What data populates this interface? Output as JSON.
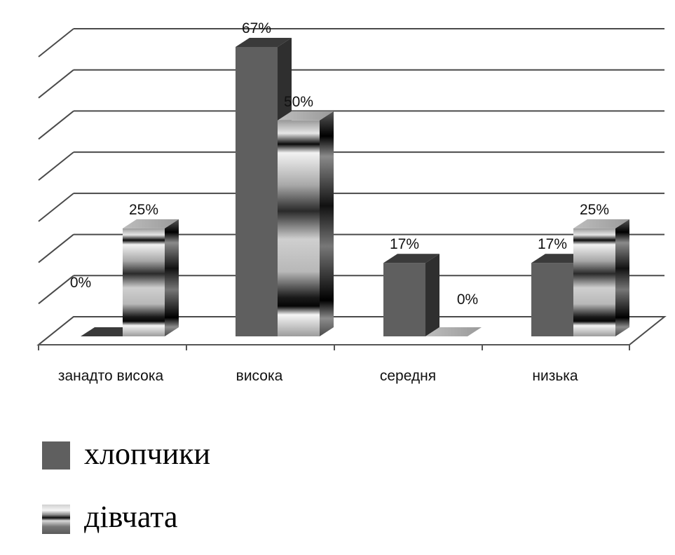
{
  "chart_data": {
    "type": "bar",
    "categories": [
      "занадто висока",
      "висока",
      "середня",
      "низька"
    ],
    "ylim": [
      0,
      70
    ],
    "grid": true,
    "legend_position": "bottom-left",
    "series": [
      {
        "name": "хлопчики",
        "values": [
          0,
          67,
          17,
          17
        ],
        "labels": [
          "0%",
          "67%",
          "17%",
          "17%"
        ]
      },
      {
        "name": "дівчата",
        "values": [
          25,
          50,
          0,
          25
        ],
        "labels": [
          "25%",
          "50%",
          "0%",
          "25%"
        ]
      }
    ]
  },
  "colors": {
    "boys_front": "#5f5f5f",
    "boys_side": "#2f2f2f",
    "boys_top": "#3a3a3a",
    "girls_base": "#c8c8c8",
    "girls_dark": "#050505",
    "grid": "#4a4a4a",
    "axis": "#555555"
  }
}
